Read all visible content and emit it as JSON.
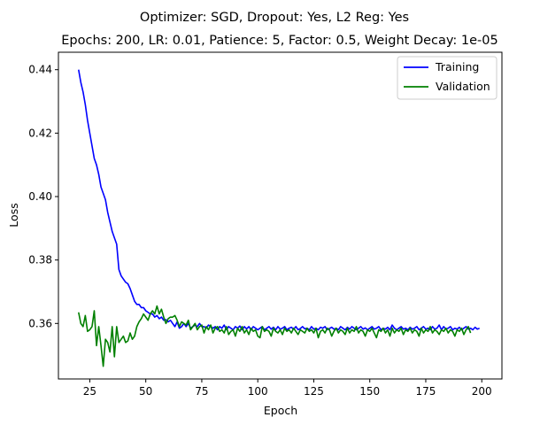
{
  "chart_data": {
    "type": "line",
    "title": "Optimizer: SGD, Dropout: Yes, L2 Reg: Yes",
    "subtitle": "Epochs: 200, LR: 0.01, Patience: 5, Factor: 0.5, Weight Decay: 1e-05",
    "xlabel": "Epoch",
    "ylabel": "Loss",
    "xlim": [
      11,
      209
    ],
    "ylim": [
      0.3425,
      0.4455
    ],
    "xticks": [
      25,
      50,
      75,
      100,
      125,
      150,
      175,
      200
    ],
    "yticks": [
      0.36,
      0.38,
      0.4,
      0.42,
      0.44
    ],
    "grid": false,
    "legend_position": "top-right",
    "x_start": 20,
    "series": [
      {
        "name": "Training",
        "color": "#0000ff",
        "values": [
          0.44,
          0.436,
          0.433,
          0.429,
          0.424,
          0.42,
          0.416,
          0.412,
          0.41,
          0.407,
          0.403,
          0.401,
          0.399,
          0.395,
          0.392,
          0.389,
          0.387,
          0.385,
          0.377,
          0.375,
          0.374,
          0.373,
          0.3725,
          0.371,
          0.369,
          0.367,
          0.366,
          0.366,
          0.365,
          0.365,
          0.364,
          0.3635,
          0.363,
          0.363,
          0.362,
          0.3625,
          0.3615,
          0.362,
          0.361,
          0.3612,
          0.3605,
          0.361,
          0.36,
          0.359,
          0.3605,
          0.3585,
          0.359,
          0.36,
          0.359,
          0.36,
          0.3585,
          0.359,
          0.3595,
          0.359,
          0.36,
          0.359,
          0.359,
          0.3585,
          0.3595,
          0.359,
          0.3585,
          0.359,
          0.358,
          0.359,
          0.3585,
          0.3595,
          0.358,
          0.359,
          0.3585,
          0.358,
          0.359,
          0.3585,
          0.3592,
          0.358,
          0.359,
          0.3583,
          0.359,
          0.358,
          0.359,
          0.3585,
          0.358,
          0.3585,
          0.359,
          0.358,
          0.3585,
          0.359,
          0.3582,
          0.3588,
          0.358,
          0.359,
          0.3582,
          0.3585,
          0.359,
          0.358,
          0.3585,
          0.3588,
          0.3582,
          0.359,
          0.358,
          0.3584,
          0.359,
          0.3583,
          0.3585,
          0.358,
          0.359,
          0.3582,
          0.3585,
          0.358,
          0.3588,
          0.3585,
          0.359,
          0.358,
          0.3584,
          0.3588,
          0.3582,
          0.3585,
          0.358,
          0.359,
          0.3585,
          0.358,
          0.3588,
          0.3582,
          0.359,
          0.3585,
          0.358,
          0.3585,
          0.359,
          0.3582,
          0.3586,
          0.358,
          0.3585,
          0.359,
          0.3582,
          0.3585,
          0.359,
          0.358,
          0.3585,
          0.3582,
          0.3588,
          0.358,
          0.3595,
          0.3585,
          0.358,
          0.3585,
          0.359,
          0.3582,
          0.3585,
          0.358,
          0.3588,
          0.3582,
          0.3585,
          0.359,
          0.358,
          0.3585,
          0.359,
          0.3582,
          0.3585,
          0.358,
          0.359,
          0.3582,
          0.3585,
          0.3595,
          0.358,
          0.359,
          0.3582,
          0.3585,
          0.359,
          0.358,
          0.3585,
          0.3582,
          0.3588,
          0.358,
          0.3585,
          0.359,
          0.3582,
          0.3585,
          0.358,
          0.3588,
          0.3582,
          0.3585
        ]
      },
      {
        "name": "Validation",
        "color": "#008000",
        "values": [
          0.3635,
          0.36,
          0.359,
          0.3625,
          0.3575,
          0.358,
          0.359,
          0.364,
          0.353,
          0.359,
          0.353,
          0.3465,
          0.355,
          0.354,
          0.351,
          0.359,
          0.3495,
          0.359,
          0.354,
          0.355,
          0.356,
          0.354,
          0.3545,
          0.357,
          0.355,
          0.356,
          0.359,
          0.3605,
          0.3615,
          0.363,
          0.362,
          0.361,
          0.363,
          0.364,
          0.363,
          0.3655,
          0.363,
          0.3645,
          0.362,
          0.36,
          0.3615,
          0.362,
          0.362,
          0.3625,
          0.361,
          0.359,
          0.3605,
          0.36,
          0.3595,
          0.361,
          0.358,
          0.359,
          0.36,
          0.358,
          0.359,
          0.3595,
          0.357,
          0.359,
          0.358,
          0.3595,
          0.357,
          0.3585,
          0.359,
          0.3575,
          0.358,
          0.357,
          0.359,
          0.3565,
          0.3575,
          0.358,
          0.356,
          0.3585,
          0.3575,
          0.359,
          0.357,
          0.358,
          0.3565,
          0.3585,
          0.3575,
          0.358,
          0.356,
          0.3555,
          0.359,
          0.3575,
          0.358,
          0.3575,
          0.356,
          0.3585,
          0.3575,
          0.357,
          0.358,
          0.3565,
          0.3585,
          0.3575,
          0.358,
          0.357,
          0.3585,
          0.3575,
          0.3565,
          0.358,
          0.3575,
          0.357,
          0.3585,
          0.3575,
          0.358,
          0.357,
          0.3585,
          0.3555,
          0.3575,
          0.358,
          0.357,
          0.3585,
          0.358,
          0.356,
          0.3575,
          0.3585,
          0.357,
          0.358,
          0.3575,
          0.3565,
          0.3585,
          0.357,
          0.358,
          0.3575,
          0.359,
          0.357,
          0.358,
          0.3575,
          0.356,
          0.358,
          0.3575,
          0.3585,
          0.357,
          0.3555,
          0.358,
          0.3575,
          0.3585,
          0.357,
          0.358,
          0.356,
          0.3585,
          0.357,
          0.358,
          0.3575,
          0.3585,
          0.3565,
          0.358,
          0.3575,
          0.3585,
          0.357,
          0.358,
          0.3575,
          0.356,
          0.3585,
          0.357,
          0.358,
          0.3575,
          0.359,
          0.357,
          0.358,
          0.3575,
          0.3565,
          0.358,
          0.3575,
          0.3585,
          0.357,
          0.358,
          0.3575,
          0.356,
          0.358,
          0.3575,
          0.3585,
          0.3565,
          0.358,
          0.359,
          0.357
        ]
      }
    ]
  }
}
